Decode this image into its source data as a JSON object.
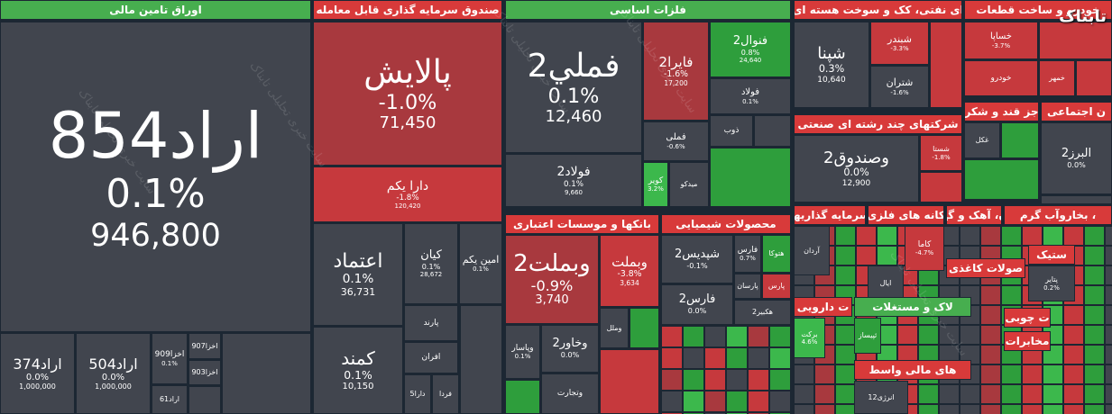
{
  "logo": "تابناک",
  "watermark": "سایت خبری تحلیلی تابناک",
  "sectors": [
    {
      "title": "اوراق تامین مالی",
      "tiles": [
        {
          "name": "اراد854",
          "change": "0.1%",
          "price": "946,800"
        },
        {
          "name": "اراد374",
          "change": "0.0%",
          "price": "1,000,000"
        },
        {
          "name": "اراد504",
          "change": "0.0%",
          "price": "1,000,000"
        },
        {
          "name": "اخزا909",
          "change": "0.1%"
        },
        {
          "name": "اراد61"
        },
        {
          "name": "اخزا907"
        },
        {
          "name": "اخزا903"
        }
      ]
    },
    {
      "title": "صندوق سرمایه گذاری قابل معامله",
      "tiles": [
        {
          "name": "پالایش",
          "change": "-1.0%",
          "price": "71,450"
        },
        {
          "name": "دارا یکم",
          "change": "-1.8%",
          "price": "120,420"
        },
        {
          "name": "اعتماد",
          "change": "0.1%",
          "price": "36,731"
        },
        {
          "name": "کمند",
          "change": "0.1%",
          "price": "10,150"
        },
        {
          "name": "کیان",
          "change": "0.1%",
          "price": "28,672"
        },
        {
          "name": "امین یکم",
          "change": "0.1%"
        },
        {
          "name": "پارند"
        },
        {
          "name": "افران"
        },
        {
          "name": "دارا5"
        },
        {
          "name": "فردا"
        }
      ]
    },
    {
      "title": "فلزات اساسی",
      "tiles": [
        {
          "name": "فملي2",
          "change": "0.1%",
          "price": "12,460"
        },
        {
          "name": "فولاد2",
          "change": "0.1%",
          "price": "9,660"
        },
        {
          "name": "فایرا2",
          "change": "-1.6%",
          "price": "17,200"
        },
        {
          "name": "فنوال2",
          "change": "0.8%",
          "price": "24,640"
        },
        {
          "name": "فولاد",
          "change": "0.1%"
        },
        {
          "name": "فملی",
          "change": "-0.6%"
        },
        {
          "name": "ذوب"
        },
        {
          "name": "کویر",
          "change": "3.2%"
        },
        {
          "name": "میدکو"
        }
      ]
    },
    {
      "title": "بانکها و موسسات اعتباری",
      "tiles": [
        {
          "name": "وبملت2",
          "change": "-0.9%",
          "price": "3,740"
        },
        {
          "name": "وبملت",
          "change": "-3.8%",
          "price": "3,634"
        },
        {
          "name": "وخاور2",
          "change": "0.0%"
        },
        {
          "name": "وپاسار",
          "change": "0.1%"
        },
        {
          "name": "وتجارت"
        },
        {
          "name": "وملل"
        }
      ]
    },
    {
      "title": "محصولات شیمیایی",
      "tiles": [
        {
          "name": "شپدیس2",
          "change": "-0.1%"
        },
        {
          "name": "فارس",
          "change": "0.7%"
        },
        {
          "name": "هتوکا"
        },
        {
          "name": "فارس2",
          "change": "0.0%"
        },
        {
          "name": "پارسان"
        },
        {
          "name": "پارس"
        },
        {
          "name": "هکبیر2"
        }
      ]
    },
    {
      "title": "ای نفتی، کک و سوخت هسته ای",
      "tiles": [
        {
          "name": "شپنا",
          "change": "0.3%",
          "price": "10,640"
        },
        {
          "name": "شبندر",
          "change": "-3.3%"
        },
        {
          "name": "شتران",
          "change": "-1.6%"
        }
      ]
    },
    {
      "title": "خودرو و ساخت قطعات",
      "tiles": [
        {
          "name": "خساپا",
          "change": "-3.7%"
        },
        {
          "name": "خودرو"
        },
        {
          "name": "خمهر"
        }
      ]
    },
    {
      "title": "شرکتهای چند رشته ای صنعتی",
      "tiles": [
        {
          "name": "وصندوق2",
          "change": "0.0%",
          "price": "12,900"
        },
        {
          "name": "شستا",
          "change": "-1.8%"
        }
      ]
    },
    {
      "title": "جز قند و شکر",
      "tiles": [
        {
          "name": "غکل"
        }
      ]
    },
    {
      "title": "ن اجتماعی",
      "tiles": [
        {
          "name": "البرز2",
          "change": "0.0%"
        }
      ]
    },
    {
      "title": "سرمایه گذاریها",
      "tiles": [
        {
          "name": "آردان"
        }
      ]
    },
    {
      "title": "کانه های فلزی",
      "tiles": [
        {
          "name": "کاما",
          "change": "-4.7%"
        },
        {
          "name": "ایال"
        }
      ]
    },
    {
      "title": "ن، آهک و گچ",
      "tiles": []
    },
    {
      "title": "، بخاروآب گرم",
      "tiles": []
    },
    {
      "title": "صولات کاغذی",
      "tiles": []
    },
    {
      "title": "ستیک",
      "tiles": [
        {
          "name": "پتایر",
          "change": "0.2%"
        }
      ]
    },
    {
      "title": "ت دارویی",
      "tiles": [
        {
          "name": "برکت",
          "change": "4.6%"
        }
      ]
    },
    {
      "title": "لاک و مستغلات",
      "tiles": [
        {
          "name": "ثپیساز"
        }
      ]
    },
    {
      "title": "های مالی واسط",
      "tiles": [
        {
          "name": "انرژی12"
        }
      ]
    },
    {
      "title": "ت چوبی",
      "tiles": []
    },
    {
      "title": "مخابرات",
      "tiles": []
    }
  ]
}
